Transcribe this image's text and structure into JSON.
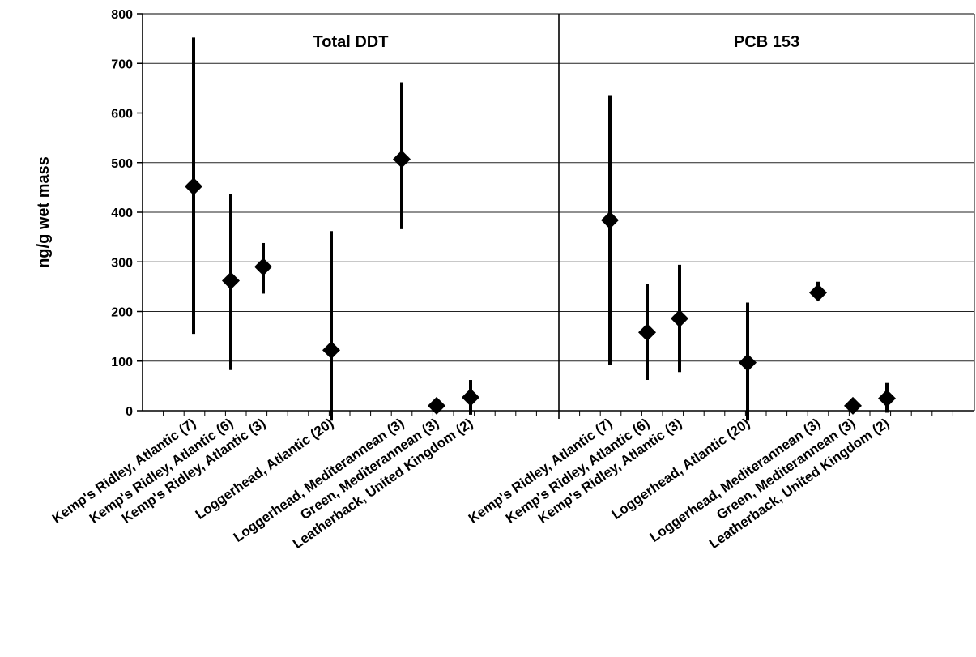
{
  "chart_data": {
    "type": "scatter",
    "ylabel": "ng/g wet mass",
    "ylim": [
      0,
      800
    ],
    "yticks": [
      0,
      100,
      200,
      300,
      400,
      500,
      600,
      700,
      800
    ],
    "grid": true,
    "marker": "diamond",
    "color": "#000000",
    "categories": [
      "Kemp's Ridley, Atlantic (7)",
      "Kemp's Ridley, Atlantic (6)",
      "Kemp's Ridley, Atlantic (3)",
      "Loggerhead, Atlantic (20)",
      "Loggerhead, Mediterannean (3)",
      "Green, Mediterannean (3)",
      "Leatherback, United Kingdom (2)"
    ],
    "panels": [
      {
        "title": "Total DDT",
        "points": [
          {
            "category": "Kemp's Ridley, Atlantic (7)",
            "value": 452,
            "low": 155,
            "high": 752
          },
          {
            "category": "Kemp's Ridley, Atlantic (6)",
            "value": 262,
            "low": 82,
            "high": 437
          },
          {
            "category": "Kemp's Ridley, Atlantic (3)",
            "value": 290,
            "low": 236,
            "high": 338
          },
          {
            "category": "Loggerhead, Atlantic (20)",
            "value": 122,
            "low": -20,
            "high": 362
          },
          {
            "category": "Loggerhead, Mediterannean (3)",
            "value": 507,
            "low": 366,
            "high": 662
          },
          {
            "category": "Green, Mediterannean (3)",
            "value": 10,
            "low": 2,
            "high": 18
          },
          {
            "category": "Leatherback, United Kingdom (2)",
            "value": 27,
            "low": -8,
            "high": 62
          }
        ]
      },
      {
        "title": "PCB 153",
        "points": [
          {
            "category": "Kemp's Ridley, Atlantic (7)",
            "value": 384,
            "low": 92,
            "high": 636
          },
          {
            "category": "Kemp's Ridley, Atlantic (6)",
            "value": 158,
            "low": 62,
            "high": 256
          },
          {
            "category": "Kemp's Ridley, Atlantic (3)",
            "value": 186,
            "low": 78,
            "high": 294
          },
          {
            "category": "Loggerhead, Atlantic (20)",
            "value": 97,
            "low": -20,
            "high": 218
          },
          {
            "category": "Loggerhead, Mediterannean (3)",
            "value": 238,
            "low": 228,
            "high": 260
          },
          {
            "category": "Green, Mediterannean (3)",
            "value": 10,
            "low": 4,
            "high": 16
          },
          {
            "category": "Leatherback, United Kingdom (2)",
            "value": 25,
            "low": -4,
            "high": 56
          }
        ]
      }
    ]
  }
}
